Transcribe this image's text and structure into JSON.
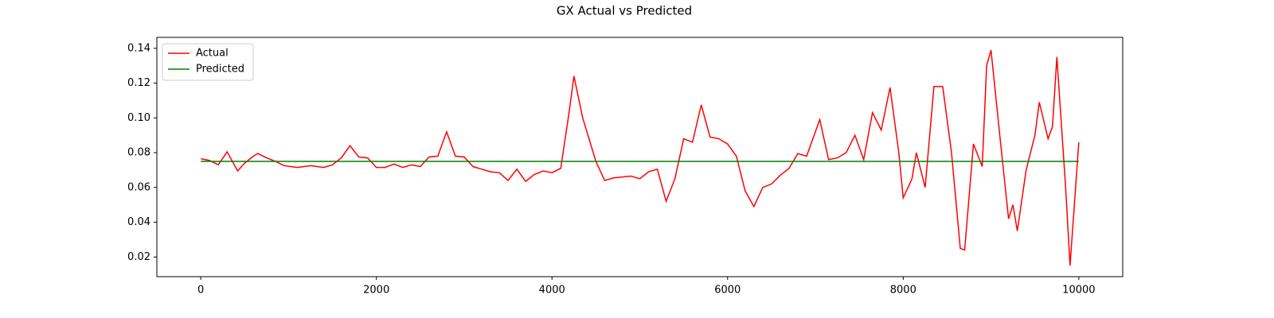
{
  "chart_data": {
    "type": "line",
    "title": "GX Actual vs Predicted",
    "xlim": [
      -500,
      10500
    ],
    "xticks": [
      0,
      2000,
      4000,
      6000,
      8000,
      10000
    ],
    "ylim": [
      0.0087,
      0.1463
    ],
    "yticks": [
      0.02,
      0.04,
      0.06,
      0.08,
      {
        "value": 0.1,
        "label": "0.10"
      },
      0.12,
      0.14
    ],
    "grid": false,
    "legend": "upper left",
    "series": [
      {
        "name": "Actual",
        "color": "#ff0000",
        "x": [
          0,
          100,
          200,
          300,
          420,
          500,
          600,
          650,
          750,
          850,
          950,
          1100,
          1250,
          1400,
          1500,
          1600,
          1700,
          1800,
          1900,
          2000,
          2100,
          2200,
          2300,
          2400,
          2500,
          2600,
          2700,
          2800,
          2900,
          3000,
          3100,
          3200,
          3300,
          3400,
          3500,
          3600,
          3700,
          3800,
          3900,
          4000,
          4100,
          4200,
          4250,
          4350,
          4500,
          4600,
          4700,
          4800,
          4900,
          5000,
          5100,
          5200,
          5300,
          5400,
          5500,
          5600,
          5700,
          5800,
          5900,
          6000,
          6100,
          6200,
          6300,
          6400,
          6500,
          6600,
          6700,
          6800,
          6900,
          7000,
          7050,
          7150,
          7250,
          7350,
          7450,
          7550,
          7650,
          7750,
          7850,
          7950,
          8000,
          8100,
          8150,
          8250,
          8350,
          8450,
          8550,
          8650,
          8700,
          8800,
          8900,
          8950,
          9000,
          9100,
          9200,
          9250,
          9300,
          9400,
          9500,
          9550,
          9650,
          9700,
          9750,
          9850,
          9900,
          10000
        ],
        "values": [
          0.0765,
          0.0755,
          0.073,
          0.0805,
          0.0695,
          0.074,
          0.078,
          0.0795,
          0.077,
          0.075,
          0.0725,
          0.0715,
          0.0725,
          0.0715,
          0.073,
          0.077,
          0.084,
          0.0775,
          0.077,
          0.0715,
          0.0715,
          0.0735,
          0.0715,
          0.073,
          0.072,
          0.0775,
          0.078,
          0.092,
          0.078,
          0.0775,
          0.072,
          0.0705,
          0.069,
          0.0685,
          0.064,
          0.0705,
          0.0635,
          0.0675,
          0.0695,
          0.0685,
          0.071,
          0.105,
          0.124,
          0.1,
          0.075,
          0.064,
          0.0655,
          0.066,
          0.0665,
          0.065,
          0.069,
          0.0705,
          0.052,
          0.065,
          0.088,
          0.086,
          0.1075,
          0.089,
          0.088,
          0.085,
          0.078,
          0.058,
          0.049,
          0.06,
          0.062,
          0.067,
          0.071,
          0.0795,
          0.078,
          0.092,
          0.099,
          0.076,
          0.077,
          0.08,
          0.09,
          0.076,
          0.103,
          0.093,
          0.1175,
          0.08,
          0.054,
          0.065,
          0.08,
          0.06,
          0.118,
          0.118,
          0.08,
          0.025,
          0.024,
          0.085,
          0.072,
          0.13,
          0.139,
          0.09,
          0.042,
          0.05,
          0.035,
          0.07,
          0.09,
          0.109,
          0.088,
          0.095,
          0.135,
          0.06,
          0.015,
          0.086
        ]
      },
      {
        "name": "Predicted",
        "color": "#008000",
        "x": [
          0,
          10000
        ],
        "values": [
          0.075,
          0.075
        ]
      }
    ]
  }
}
